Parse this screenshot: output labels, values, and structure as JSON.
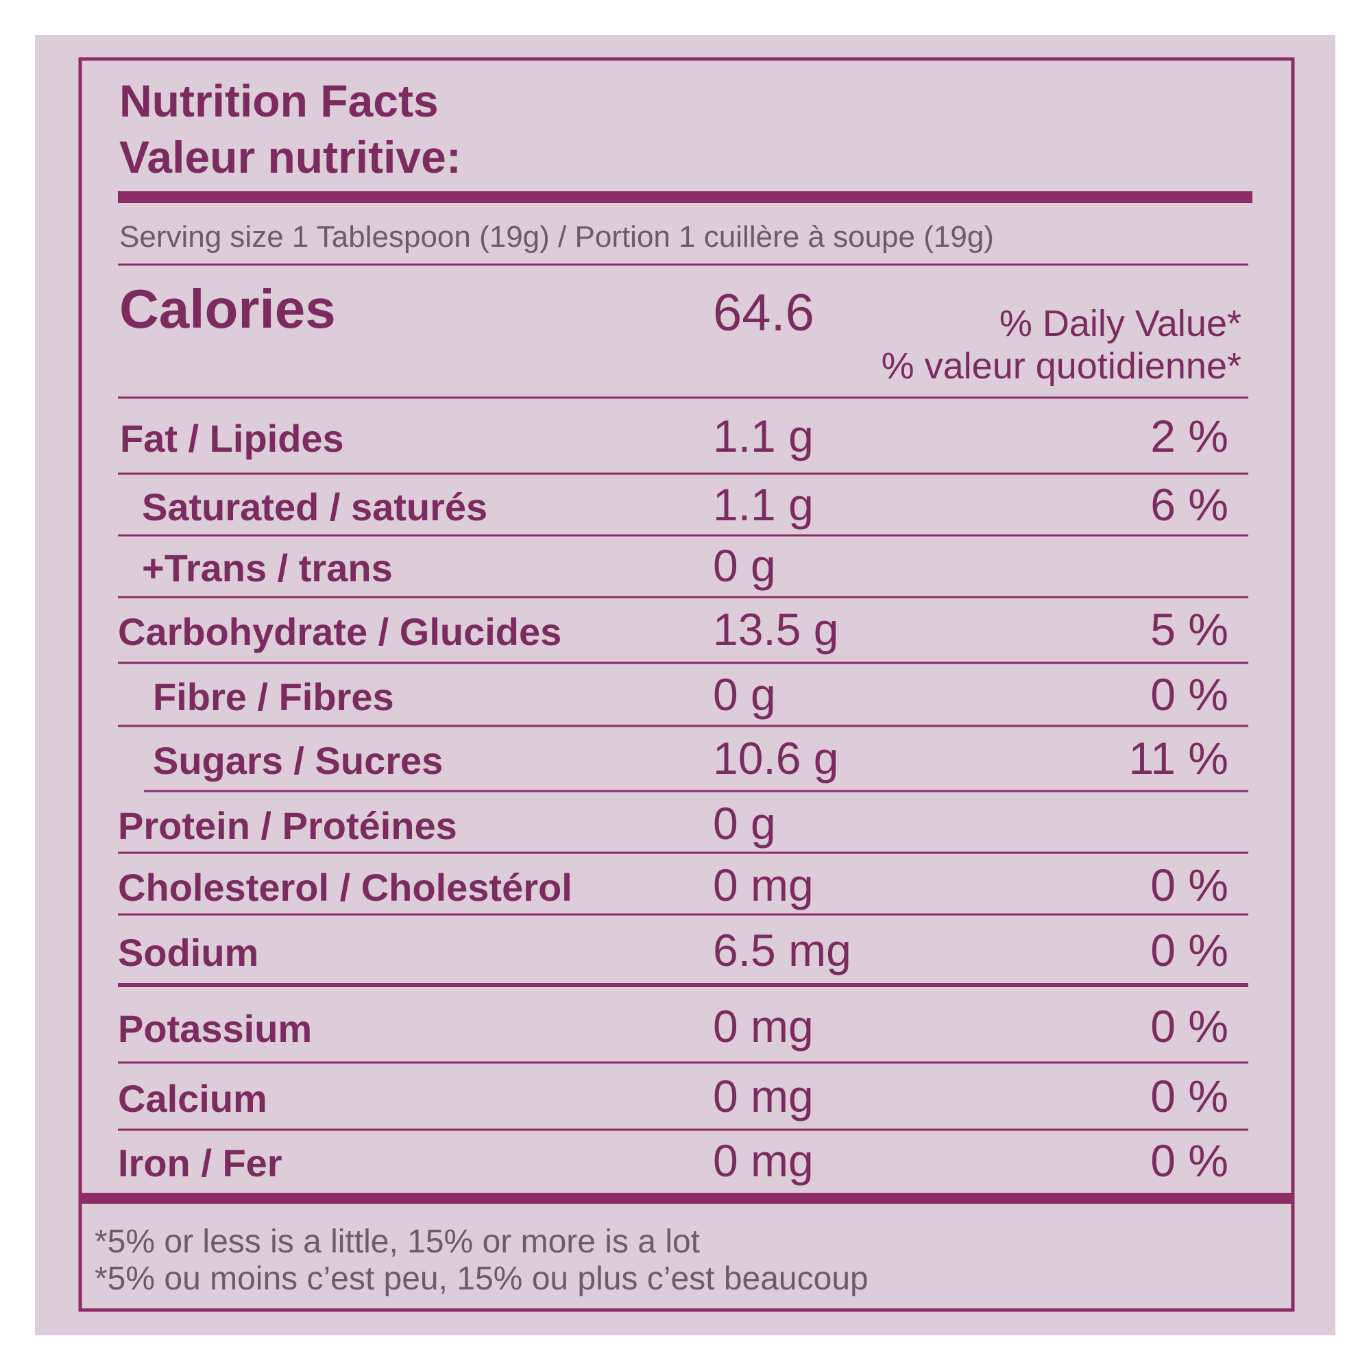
{
  "header": {
    "title": [
      "Nutrition Facts",
      "Valeur nutritive:"
    ]
  },
  "serving": "Serving size 1 Tablespoon (19g) / Portion 1 cuillère à soupe (19g)",
  "calories": {
    "label": "Calories",
    "amount": "64.6"
  },
  "daily_value_header": [
    "% Daily Value*",
    "% valeur quotidienne*"
  ],
  "rows": [
    {
      "name": "Fat / Lipides",
      "amount": "1.1 g",
      "dv": "2 %"
    },
    {
      "name": "Saturated / saturés",
      "amount": "1.1 g",
      "dv": "6 %"
    },
    {
      "name": "+Trans / trans",
      "amount": "0 g"
    },
    {
      "name": "Carbohydrate / Glucides",
      "amount": "13.5 g",
      "dv": "5 %"
    },
    {
      "name": "Fibre / Fibres",
      "amount": "0 g",
      "dv": "0 %"
    },
    {
      "name": "Sugars / Sucres",
      "amount": "10.6 g",
      "dv": "11 %"
    },
    {
      "name": "Protein / Protéines",
      "amount": "0 g"
    },
    {
      "name": "Cholesterol / Cholestérol",
      "amount": "0 mg",
      "dv": "0 %"
    },
    {
      "name": "Sodium",
      "amount": "6.5 mg",
      "dv": "0 %"
    },
    {
      "name": "Potassium",
      "amount": "0 mg",
      "dv": "0 %"
    },
    {
      "name": "Calcium",
      "amount": "0 mg",
      "dv": "0 %"
    },
    {
      "name": "Iron / Fer",
      "amount": "0 mg",
      "dv": "0 %"
    }
  ],
  "footnote": [
    "*5% or less is a little, 15% or more is a lot",
    "*5% ou moins c’est peu, 15% ou plus c’est beaucoup"
  ]
}
